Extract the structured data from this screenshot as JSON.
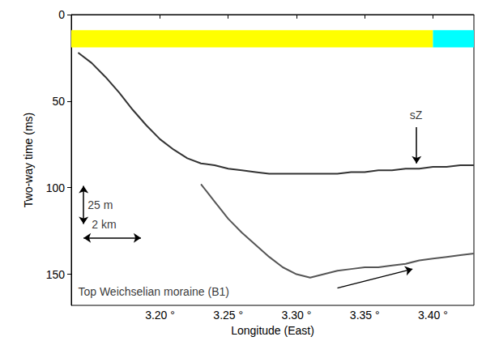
{
  "chart_data": {
    "type": "line",
    "xlabel": "Longitude (East)",
    "ylabel": "Two-way time (ms)",
    "x": [
      3.14,
      3.15,
      3.16,
      3.17,
      3.18,
      3.19,
      3.2,
      3.21,
      3.22,
      3.23,
      3.24,
      3.25,
      3.26,
      3.27,
      3.28,
      3.29,
      3.3,
      3.31,
      3.32,
      3.33,
      3.34,
      3.35,
      3.36,
      3.37,
      3.38,
      3.39,
      3.4,
      3.41,
      3.42,
      3.43
    ],
    "series": [
      {
        "color": "#333333",
        "values": [
          22,
          28,
          36,
          45,
          55,
          64,
          72,
          78,
          83,
          86,
          87,
          89,
          90,
          91,
          92,
          92,
          92,
          92,
          92,
          92,
          91,
          91,
          90,
          90,
          89,
          89,
          88,
          88,
          87,
          87
        ]
      },
      {
        "color": "#555555",
        "values": [
          null,
          null,
          null,
          null,
          null,
          null,
          null,
          null,
          null,
          98,
          108,
          118,
          126,
          133,
          140,
          146,
          150,
          152,
          150,
          148,
          147,
          146,
          146,
          145,
          144,
          142,
          141,
          140,
          139,
          138
        ]
      }
    ],
    "xlim": [
      3.135,
      3.43
    ],
    "xticks": [
      {
        "value": 3.2,
        "label": "3.20 °"
      },
      {
        "value": 3.25,
        "label": "3.25 °"
      },
      {
        "value": 3.3,
        "label": "3.30 °"
      },
      {
        "value": 3.35,
        "label": "3.35 °"
      },
      {
        "value": 3.4,
        "label": "3.40 °"
      }
    ],
    "ylim": [
      0,
      168
    ],
    "yticks": [
      0,
      50,
      100,
      150
    ],
    "grid": false,
    "bands": [
      {
        "x": [
          3.135,
          3.4
        ],
        "y": [
          9,
          19
        ],
        "color": "#ffff00"
      },
      {
        "x": [
          3.4,
          3.43
        ],
        "y": [
          9,
          19
        ],
        "color": "#00ffff"
      }
    ],
    "annotations": [
      {
        "text": "sZ",
        "x": 3.383,
        "y": 58,
        "from": [
          3.388,
          65
        ],
        "to": [
          3.388,
          86
        ],
        "line_style": "arrow"
      },
      {
        "text": "Top Weichselian moraine (B1)",
        "x": 3.14,
        "y": 160,
        "from": [
          3.33,
          158
        ],
        "to": [
          3.385,
          147
        ],
        "line_style": "arrow"
      },
      {
        "text": "25 m",
        "x": 3.147,
        "y": 110,
        "from": [
          3.144,
          99
        ],
        "to": [
          3.144,
          121
        ],
        "line_style": "double-arrow"
      },
      {
        "text": "2 km",
        "x": 3.15,
        "y": 121,
        "from": [
          3.144,
          129
        ],
        "to": [
          3.186,
          129
        ],
        "line_style": "double-arrow"
      }
    ]
  }
}
